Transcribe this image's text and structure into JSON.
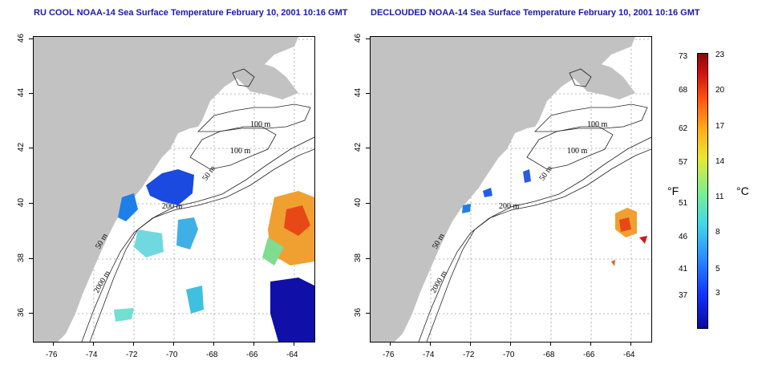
{
  "left_panel": {
    "title": "RU COOL NOAA-14 Sea Surface Temperature February 10, 2001 10:16 GMT",
    "x_ticks": [
      "-76",
      "-74",
      "-72",
      "-70",
      "-68",
      "-66",
      "-64"
    ],
    "y_ticks": [
      "46",
      "44",
      "42",
      "40",
      "38",
      "36"
    ],
    "contour_labels": [
      "100 m",
      "100 m",
      "50 m",
      "200 m",
      "50 m",
      "2000 m"
    ]
  },
  "right_panel": {
    "title": "DECLOUDED NOAA-14 Sea Surface Temperature February 10, 2001 10:16 GMT",
    "x_ticks": [
      "-76",
      "-74",
      "-72",
      "-70",
      "-68",
      "-66",
      "-64"
    ],
    "y_ticks": [
      "46",
      "44",
      "42",
      "40",
      "38",
      "36"
    ],
    "contour_labels": [
      "100 m",
      "100 m",
      "50 m",
      "200 m",
      "50 m",
      "2000 m"
    ]
  },
  "colorbar": {
    "fahrenheit_unit": "°F",
    "celsius_unit": "°C",
    "fahrenheit_ticks": [
      "73",
      "68",
      "62",
      "57",
      "51",
      "46",
      "41",
      "37"
    ],
    "celsius_ticks": [
      "23",
      "20",
      "17",
      "14",
      "11",
      "8",
      "5",
      "3"
    ]
  },
  "colors": {
    "land": "#c2c2c2",
    "title": "#1a1aa8",
    "grid": "#a0a0a0"
  }
}
